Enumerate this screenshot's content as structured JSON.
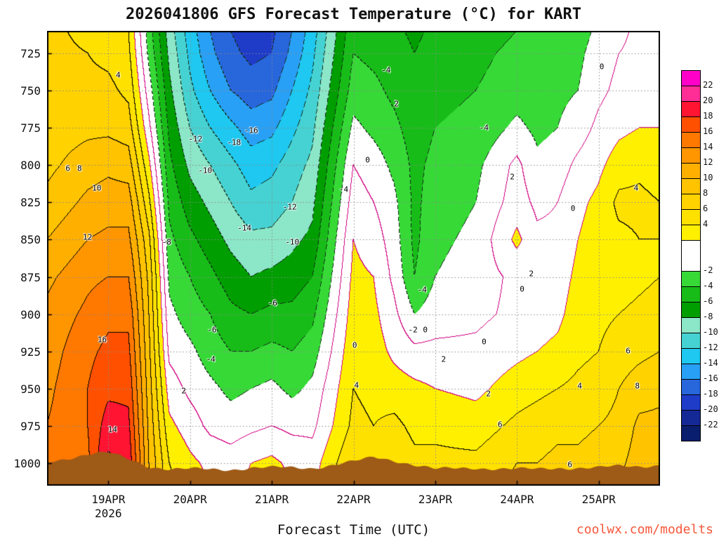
{
  "watermark": "coolwx.com/modelts",
  "colors": {
    "watermark": "#f8573a",
    "terrain": "#9e5a17",
    "grid": "#8a8a8a",
    "frame": "#000000",
    "contour_zero_line": "#d20082",
    "contour_positive_line": "#000000",
    "contour_negative_line": "#142d19"
  },
  "chart_data": {
    "type": "contour",
    "title": "2026041806 GFS Forecast Temperature (°C) for KART",
    "xlabel": "Forecast Time (UTC)",
    "init_time": "2026041806",
    "station": "KART",
    "contour_interval": 2,
    "x_range": [
      0,
      180
    ],
    "y_range": [
      710,
      1015
    ],
    "x_ticks": [
      {
        "label": "19APR",
        "hour": 18
      },
      {
        "label": "20APR",
        "hour": 42
      },
      {
        "label": "21APR",
        "hour": 66
      },
      {
        "label": "22APR",
        "hour": 90
      },
      {
        "label": "23APR",
        "hour": 114
      },
      {
        "label": "24APR",
        "hour": 138
      },
      {
        "label": "25APR",
        "hour": 162
      }
    ],
    "year_label": "2026",
    "y_ticks": [
      725,
      750,
      775,
      800,
      825,
      850,
      875,
      900,
      925,
      950,
      975,
      1000
    ],
    "x_hours": [
      0,
      12,
      18,
      24,
      30,
      36,
      42,
      48,
      54,
      60,
      66,
      72,
      78,
      90,
      96,
      102,
      108,
      114,
      126,
      138,
      144,
      150,
      156,
      162,
      168,
      174,
      180
    ],
    "y_pressure": [
      710,
      725,
      750,
      775,
      800,
      825,
      850,
      875,
      900,
      925,
      950,
      975,
      1000,
      1015
    ],
    "temperature_columns": [
      [
        6.5,
        6.5,
        7,
        7,
        7.5,
        8.5,
        10,
        11.5,
        12.5,
        13,
        13.5,
        14,
        14.5,
        14.5
      ],
      [
        5.5,
        6,
        6.5,
        7.5,
        9,
        10.5,
        12,
        13.5,
        14.5,
        15.5,
        16,
        16,
        15.5,
        15.5
      ],
      [
        5,
        5.5,
        6.5,
        7.5,
        9.5,
        11,
        12.5,
        14,
        15.5,
        16.5,
        17.5,
        19,
        20.5,
        21
      ],
      [
        4,
        4.5,
        5.5,
        7,
        9,
        11,
        12.5,
        14,
        15.5,
        16.5,
        17.5,
        18.5,
        19.5,
        20
      ],
      [
        -3,
        -2.5,
        -1,
        0.5,
        2.5,
        4.5,
        6.5,
        7.5,
        8,
        8.5,
        9,
        9.5,
        10,
        10
      ],
      [
        -9,
        -8.5,
        -7.5,
        -6.5,
        -5.5,
        -4.5,
        -3.5,
        -2.5,
        -1.5,
        -0.5,
        1,
        2.5,
        4,
        4.5
      ],
      [
        -13,
        -12.5,
        -11.5,
        -10,
        -8.5,
        -7,
        -5.5,
        -4,
        -3,
        -1.5,
        -0.5,
        1,
        2.5,
        3
      ],
      [
        -16,
        -15.5,
        -14,
        -12,
        -10,
        -8.5,
        -7,
        -5.5,
        -4,
        -3,
        -1.5,
        -0.5,
        1.5,
        2
      ],
      [
        -18,
        -17.5,
        -16,
        -13.5,
        -11.5,
        -10,
        -8.5,
        -7,
        -5.5,
        -4,
        -2.5,
        -1,
        1,
        1.5
      ],
      [
        -19,
        -18.5,
        -17,
        -15,
        -13,
        -11.5,
        -9.5,
        -8,
        -6,
        -4,
        -2,
        -0.5,
        2,
        2.5
      ],
      [
        -18.5,
        -18,
        -16.5,
        -14.5,
        -12.5,
        -11,
        -9.5,
        -7.5,
        -5.5,
        -3.5,
        -1.5,
        0,
        2.5,
        3
      ],
      [
        -16,
        -15.5,
        -14,
        -12.5,
        -11,
        -10,
        -8.5,
        -7,
        -5.5,
        -4,
        -2.5,
        -0.5,
        1.5,
        2
      ],
      [
        -13,
        -12.5,
        -11.5,
        -10.5,
        -9.5,
        -8.5,
        -7.5,
        -6,
        -4.5,
        -3,
        -1.5,
        -0.5,
        1,
        1.5
      ],
      [
        -4.5,
        -4,
        -3,
        -1.5,
        0,
        1,
        2,
        2.5,
        3,
        3.5,
        4,
        4.5,
        6,
        6.5
      ],
      [
        -5,
        -4.5,
        -3.5,
        -2.5,
        -1,
        0,
        1,
        2,
        2.5,
        3,
        3.5,
        4,
        5,
        5.5
      ],
      [
        -5.5,
        -5,
        -4.5,
        -3.5,
        -2.5,
        -1.5,
        -1,
        -0.5,
        0.5,
        1.5,
        3,
        4.5,
        5.5,
        6
      ],
      [
        -6.5,
        -6,
        -5.5,
        -5,
        -4.5,
        -4.5,
        -4.5,
        -4,
        -2,
        0.5,
        2.5,
        3.5,
        4.5,
        5
      ],
      [
        -5.5,
        -5,
        -4.5,
        -4,
        -3.5,
        -3,
        -2.5,
        -2,
        -1,
        0.5,
        2,
        3.5,
        4.5,
        5
      ],
      [
        -5,
        -4.5,
        -4,
        -3.5,
        -2.5,
        -2,
        -1.5,
        -1,
        -0.5,
        0.5,
        1.5,
        3,
        4.5,
        5
      ],
      [
        -4,
        -3.5,
        -3,
        -1.5,
        0.5,
        1,
        2.5,
        0.5,
        0.5,
        1.5,
        3,
        4.5,
        6,
        6.5
      ],
      [
        -4,
        -3.5,
        -3,
        -2.5,
        -1.5,
        -0.5,
        0.5,
        0.5,
        1,
        2,
        3.5,
        5,
        6,
        6.5
      ],
      [
        -3.5,
        -3,
        -2.5,
        -2,
        -1,
        0,
        0.5,
        1,
        1.5,
        2.5,
        4,
        5.5,
        6.5,
        7
      ],
      [
        -3,
        -2.5,
        -2,
        -1,
        0.5,
        1.5,
        2,
        2.5,
        3,
        3.5,
        4.5,
        5.5,
        6.5,
        7
      ],
      [
        -1.5,
        -1,
        -0.5,
        0.5,
        1.5,
        2.5,
        3,
        3,
        3.5,
        4,
        5,
        6,
        7,
        7.5
      ],
      [
        -0.5,
        0,
        0.5,
        1.5,
        3,
        4.5,
        3.5,
        3,
        4,
        5,
        6,
        6.5,
        7.5,
        8
      ],
      [
        0.5,
        0.5,
        1,
        2,
        3.5,
        4.5,
        4,
        3.5,
        4.5,
        5.5,
        7,
        8.5,
        9,
        9.5
      ],
      [
        0.5,
        1,
        1.5,
        2,
        3,
        4,
        4,
        4,
        5,
        6,
        7.5,
        8.5,
        9.5,
        10
      ]
    ],
    "terrain_surface_pressure": [
      999,
      994,
      993,
      997,
      1002,
      1004,
      1004,
      1004,
      1004,
      1003,
      1003,
      1003,
      1003,
      999,
      996,
      998,
      1001,
      1004,
      1003,
      1004,
      1004,
      1003,
      1003,
      1003,
      1002,
      1002,
      1001
    ],
    "band_colors": {
      "-24": "#0a1e6e",
      "-22": "#142896",
      "-20": "#1e3cc8",
      "-18": "#2866dc",
      "-16": "#28a0f5",
      "-14": "#1ec8f0",
      "-12": "#46d2d2",
      "-10": "#8ce6c8",
      "-8": "#009e00",
      "-6": "#18bc18",
      "-4": "#37d937",
      "-2": "#ffffff",
      "0": "#ffffff",
      "2": "#fff000",
      "4": "#ffe100",
      "6": "#ffd200",
      "8": "#ffc300",
      "10": "#ffaf00",
      "12": "#ff9600",
      "14": "#ff7800",
      "16": "#ff5000",
      "18": "#ff1432",
      "20": "#ff2d96",
      "22": "#ff00c8"
    },
    "colorbar": {
      "cells": [
        [
          "#ff00c8",
          1
        ],
        [
          "#ff2d96",
          1
        ],
        [
          "#ff1432",
          1
        ],
        [
          "#ff5000",
          1
        ],
        [
          "#ff7800",
          1
        ],
        [
          "#ff9600",
          1
        ],
        [
          "#ffaf00",
          1
        ],
        [
          "#ffc300",
          1
        ],
        [
          "#ffd200",
          1
        ],
        [
          "#ffe100",
          1
        ],
        [
          "#fff000",
          1
        ],
        [
          "#ffffff",
          2
        ],
        [
          "#37d937",
          1
        ],
        [
          "#18bc18",
          1
        ],
        [
          "#009e00",
          1
        ],
        [
          "#8ce6c8",
          1
        ],
        [
          "#46d2d2",
          1
        ],
        [
          "#1ec8f0",
          1
        ],
        [
          "#28a0f5",
          1
        ],
        [
          "#2866dc",
          1
        ],
        [
          "#1e3cc8",
          1
        ],
        [
          "#142896",
          1
        ],
        [
          "#0a1e6e",
          1
        ]
      ],
      "labels": [
        [
          "22",
          1
        ],
        [
          "20",
          2
        ],
        [
          "18",
          3
        ],
        [
          "16",
          4
        ],
        [
          "14",
          5
        ],
        [
          "12",
          6
        ],
        [
          "10",
          7
        ],
        [
          "8",
          8
        ],
        [
          "6",
          9
        ],
        [
          "4",
          10
        ],
        [
          "-2",
          13
        ],
        [
          "-4",
          14
        ],
        [
          "-6",
          15
        ],
        [
          "-8",
          16
        ],
        [
          "-10",
          17
        ],
        [
          "-12",
          18
        ],
        [
          "-14",
          19
        ],
        [
          "-16",
          20
        ],
        [
          "-18",
          21
        ],
        [
          "-20",
          22
        ],
        [
          "-22",
          23
        ]
      ]
    },
    "contour_labels": [
      {
        "t": "4",
        "fx": 0.116,
        "fy": 0.097
      },
      {
        "t": "-4",
        "fx": 0.553,
        "fy": 0.086
      },
      {
        "t": "0",
        "fx": 0.905,
        "fy": 0.079
      },
      {
        "t": "2",
        "fx": 0.57,
        "fy": 0.16
      },
      {
        "t": "-4",
        "fx": 0.713,
        "fy": 0.213
      },
      {
        "t": "-16",
        "fx": 0.333,
        "fy": 0.219
      },
      {
        "t": "-12",
        "fx": 0.242,
        "fy": 0.238
      },
      {
        "t": "-18",
        "fx": 0.305,
        "fy": 0.245
      },
      {
        "t": "6",
        "fx": 0.034,
        "fy": 0.302
      },
      {
        "t": "8",
        "fx": 0.053,
        "fy": 0.302
      },
      {
        "t": "-10",
        "fx": 0.258,
        "fy": 0.307
      },
      {
        "t": "0",
        "fx": 0.523,
        "fy": 0.284
      },
      {
        "t": "2",
        "fx": 0.759,
        "fy": 0.321
      },
      {
        "t": "10",
        "fx": 0.081,
        "fy": 0.346
      },
      {
        "t": "4",
        "fx": 0.961,
        "fy": 0.346
      },
      {
        "t": "-4",
        "fx": 0.484,
        "fy": 0.349
      },
      {
        "t": "-12",
        "fx": 0.396,
        "fy": 0.387
      },
      {
        "t": "0",
        "fx": 0.858,
        "fy": 0.39
      },
      {
        "t": "12",
        "fx": 0.066,
        "fy": 0.454
      },
      {
        "t": "-14",
        "fx": 0.322,
        "fy": 0.434
      },
      {
        "t": "-8",
        "fx": 0.195,
        "fy": 0.464
      },
      {
        "t": "-10",
        "fx": 0.4,
        "fy": 0.464
      },
      {
        "t": "2",
        "fx": 0.79,
        "fy": 0.534
      },
      {
        "t": "-6",
        "fx": 0.368,
        "fy": 0.599
      },
      {
        "t": "0",
        "fx": 0.775,
        "fy": 0.568
      },
      {
        "t": "-4",
        "fx": 0.612,
        "fy": 0.569
      },
      {
        "t": "16",
        "fx": 0.09,
        "fy": 0.679
      },
      {
        "t": "-6",
        "fx": 0.269,
        "fy": 0.657
      },
      {
        "t": "-4",
        "fx": 0.267,
        "fy": 0.722
      },
      {
        "t": "-2",
        "fx": 0.597,
        "fy": 0.657
      },
      {
        "t": "0",
        "fx": 0.617,
        "fy": 0.657
      },
      {
        "t": "0",
        "fx": 0.713,
        "fy": 0.684
      },
      {
        "t": "0",
        "fx": 0.502,
        "fy": 0.691
      },
      {
        "t": "2",
        "fx": 0.647,
        "fy": 0.722
      },
      {
        "t": "6",
        "fx": 0.948,
        "fy": 0.703
      },
      {
        "t": "8",
        "fx": 0.963,
        "fy": 0.781
      },
      {
        "t": "2",
        "fx": 0.223,
        "fy": 0.792
      },
      {
        "t": "4",
        "fx": 0.869,
        "fy": 0.781
      },
      {
        "t": "4",
        "fx": 0.505,
        "fy": 0.779
      },
      {
        "t": "2",
        "fx": 0.72,
        "fy": 0.798
      },
      {
        "t": "14",
        "fx": 0.107,
        "fy": 0.876
      },
      {
        "t": "6",
        "fx": 0.739,
        "fy": 0.866
      },
      {
        "t": "6",
        "fx": 0.853,
        "fy": 0.954
      }
    ]
  }
}
